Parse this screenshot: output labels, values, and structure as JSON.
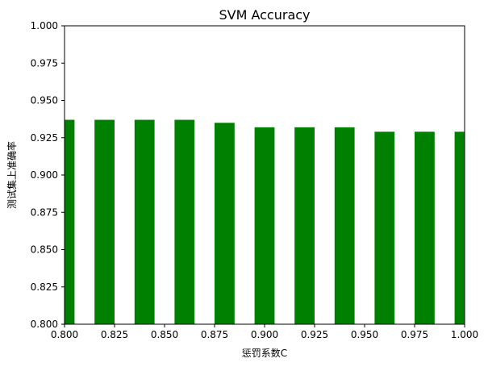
{
  "chart_data": {
    "type": "bar",
    "title": "SVM Accuracy",
    "xlabel": "惩罚系数C",
    "ylabel": "测试集上准确率",
    "x": [
      0.8,
      0.82,
      0.84,
      0.86,
      0.88,
      0.9,
      0.92,
      0.94,
      0.96,
      0.98,
      1.0
    ],
    "values": [
      0.937,
      0.937,
      0.937,
      0.937,
      0.935,
      0.932,
      0.932,
      0.932,
      0.929,
      0.929,
      0.929
    ],
    "bar_width": 0.01,
    "xlim": [
      0.8,
      1.0
    ],
    "ylim": [
      0.8,
      1.0
    ],
    "xticks": [
      "0.800",
      "0.825",
      "0.850",
      "0.875",
      "0.900",
      "0.925",
      "0.950",
      "0.975",
      "1.000"
    ],
    "yticks": [
      "0.800",
      "0.825",
      "0.850",
      "0.875",
      "0.900",
      "0.925",
      "0.950",
      "0.975",
      "1.000"
    ],
    "bar_color": "#008000",
    "grid": false,
    "legend": "none"
  }
}
